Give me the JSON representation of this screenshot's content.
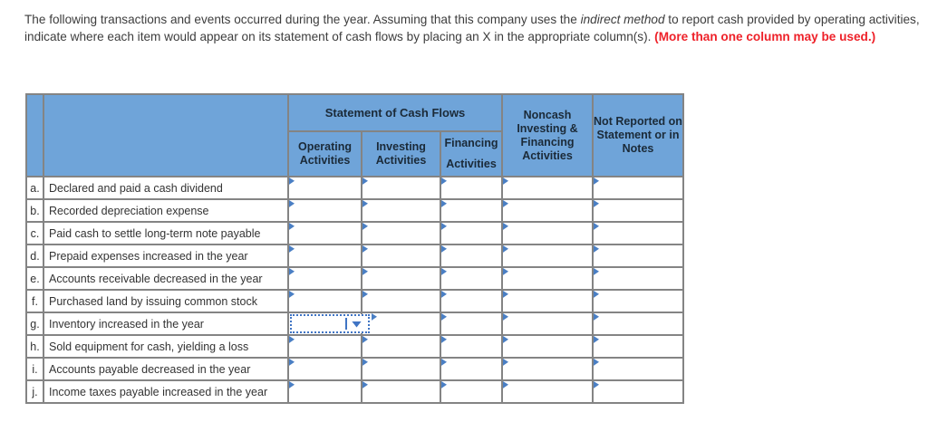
{
  "intro": {
    "part1": "The following transactions and events occurred during the year. Assuming that this company uses the ",
    "italic": "indirect method",
    "part2": " to report cash provided by operating activities, indicate where each item would appear on its statement of cash flows by placing an X in the appropriate column(s). ",
    "warning": "(More than one column may be used.)"
  },
  "table": {
    "header": {
      "group": "Statement of Cash Flows",
      "col_operating": "Operating Activities",
      "col_investing": "Investing Activities",
      "col_financing": "Financing Activities",
      "col_noncash": "Noncash Investing & Financing Activities",
      "col_not_reported": "Not Reported on Statement or in Notes"
    },
    "rows": [
      {
        "letter": "a.",
        "description": "Declared and paid a cash dividend"
      },
      {
        "letter": "b.",
        "description": "Recorded depreciation expense"
      },
      {
        "letter": "c.",
        "description": "Paid cash to settle long-term note payable"
      },
      {
        "letter": "d.",
        "description": "Prepaid expenses increased in the year"
      },
      {
        "letter": "e.",
        "description": "Accounts receivable decreased in the year"
      },
      {
        "letter": "f.",
        "description": "Purchased land by issuing common stock"
      },
      {
        "letter": "g.",
        "description": "Inventory increased in the year"
      },
      {
        "letter": "h.",
        "description": "Sold equipment for cash, yielding a loss"
      },
      {
        "letter": "i.",
        "description": "Accounts payable decreased in the year"
      },
      {
        "letter": "j.",
        "description": "Income taxes payable increased in the year"
      }
    ],
    "active_cell": {
      "row_letter": "g.",
      "column": "Operating Activities",
      "row_index": 6,
      "col_index": 0,
      "selected_value": ""
    }
  },
  "icons": {
    "cell_dropdown_marker": "small blue right-pointing triangle",
    "open_dropdown_caret": "blue caret-down"
  },
  "colors": {
    "header_bg": "#6fa4d9",
    "header_text": "#1b2a38",
    "grid_border": "#848484",
    "marker_blue": "#4a7fc4",
    "dropdown_blue": "#3f74c4",
    "warning_red": "#ee2129",
    "body_text": "#3d3d3d"
  }
}
